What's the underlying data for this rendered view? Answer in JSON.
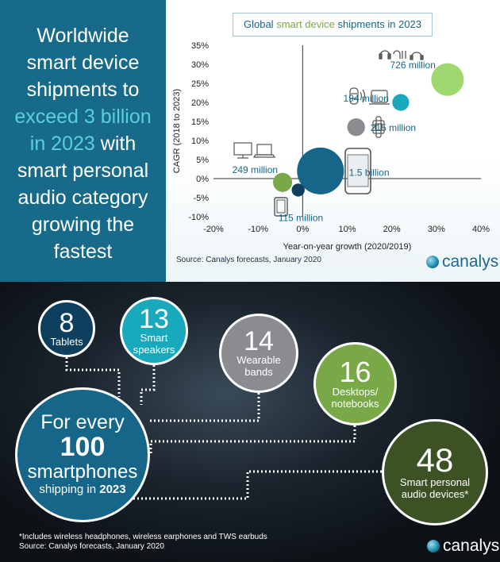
{
  "headline": {
    "line1": "Worldwide",
    "line2": "smart device",
    "line3": "shipments to",
    "highlight1": "exceed 3 billion",
    "highlight2": "in 2023",
    "line4_rest": " with",
    "line5": "smart personal",
    "line6": "audio category",
    "line7": "growing the",
    "line8": "fastest"
  },
  "chart_title": {
    "part1": "Global ",
    "part2": "smart device",
    "part3": " shipments in 2023"
  },
  "chart_source": "Source: Canalys forecasts, January 2020",
  "logo_text": "canalys",
  "colors": {
    "dark_blue": "#16668a",
    "teal": "#18a9bc",
    "grey": "#8a8c8f",
    "green": "#79a846",
    "light_green": "#9fd86e",
    "navy": "#0e3f5e"
  },
  "chart_data": {
    "type": "scatter",
    "xlabel": "Year-on-year growth (2020/2019)",
    "ylabel": "CAGR (2018 to 2023)",
    "xlim": [
      -20,
      40
    ],
    "ylim": [
      -10,
      35
    ],
    "xticks": [
      "-20%",
      "-10%",
      "0%",
      "10%",
      "20%",
      "30%",
      "40%"
    ],
    "yticks": [
      "35%",
      "30%",
      "25%",
      "20%",
      "15%",
      "10%",
      "5%",
      "0%",
      "-5%",
      "-10%"
    ],
    "points": [
      {
        "category": "Smart personal audio",
        "x": 32.5,
        "y": 26,
        "size": 726,
        "label": "726 million",
        "color": "#9fd86e"
      },
      {
        "category": "Smart speakers",
        "x": 22,
        "y": 20,
        "size": 194,
        "label": "194 million",
        "color": "#18a9bc"
      },
      {
        "category": "Wearable bands",
        "x": 12,
        "y": 13.5,
        "size": 215,
        "label": "215 million",
        "color": "#8a8c8f"
      },
      {
        "category": "Smartphones",
        "x": 4,
        "y": 2,
        "size": 1500,
        "label": "1.5 billion",
        "color": "#16668a"
      },
      {
        "category": "Desktops/notebooks",
        "x": -4.5,
        "y": -1,
        "size": 249,
        "label": "249 million",
        "color": "#79a846"
      },
      {
        "category": "Tablets",
        "x": -1,
        "y": -3,
        "size": 115,
        "label": "115 million",
        "color": "#0e3f5e"
      }
    ]
  },
  "ratio": {
    "tablets": {
      "value": "8",
      "label": "Tablets"
    },
    "speakers": {
      "value": "13",
      "label1": "Smart",
      "label2": "speakers"
    },
    "bands": {
      "value": "14",
      "label1": "Wearable",
      "label2": "bands"
    },
    "desktops": {
      "value": "16",
      "label1": "Desktops/",
      "label2": "notebooks"
    },
    "audio": {
      "value": "48",
      "label1": "Smart personal",
      "label2": "audio devices*"
    },
    "phones": {
      "line1": "For every",
      "line2": "100",
      "line3": "smartphones",
      "line4a": "shipping in ",
      "line4b": "2023"
    }
  },
  "footnote": {
    "line1": "*Includes wireless headphones, wireless earphones and TWS earbuds",
    "line2": "Source: Canalys forecasts, January 2020"
  }
}
